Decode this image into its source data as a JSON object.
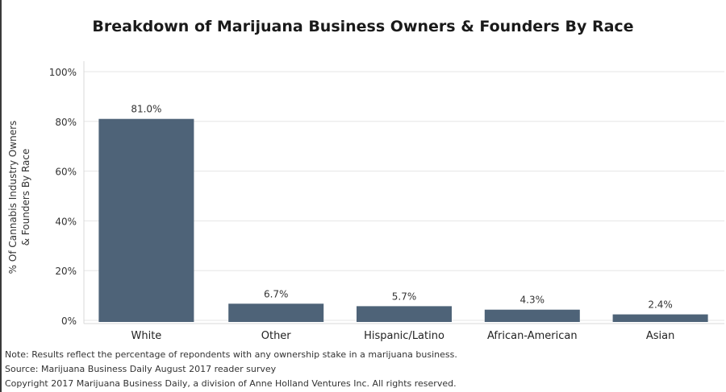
{
  "chart_data": {
    "type": "bar",
    "title": "Breakdown of Marijuana Business Owners & Founders By Race",
    "xlabel": "",
    "ylabel": "% Of Cannabis Industry Owners & Founders By Race",
    "ylabel_lines": [
      "% Of Cannabis Industry Owners",
      "& Founders By Race"
    ],
    "categories": [
      "White",
      "Other",
      "Hispanic/Latino",
      "African-American",
      "Asian"
    ],
    "values": [
      81.0,
      6.7,
      5.7,
      4.3,
      2.4
    ],
    "value_labels": [
      "81.0%",
      "6.7%",
      "5.7%",
      "4.3%",
      "2.4%"
    ],
    "yticks": [
      0,
      20,
      40,
      60,
      80,
      100
    ],
    "ytick_labels": [
      "0%",
      "20%",
      "40%",
      "60%",
      "80%",
      "100%"
    ],
    "ylim": [
      0,
      100
    ],
    "grid": true,
    "bar_color": "#4e6378"
  },
  "notes": {
    "note": "Note: Results reflect the percentage of repondents with any ownership stake in a marijuana business.",
    "source": "Source: Marijuana Business Daily August 2017 reader survey",
    "copyright": "Copyright 2017 Marijuana Business Daily, a division of Anne Holland Ventures Inc. All rights reserved."
  }
}
